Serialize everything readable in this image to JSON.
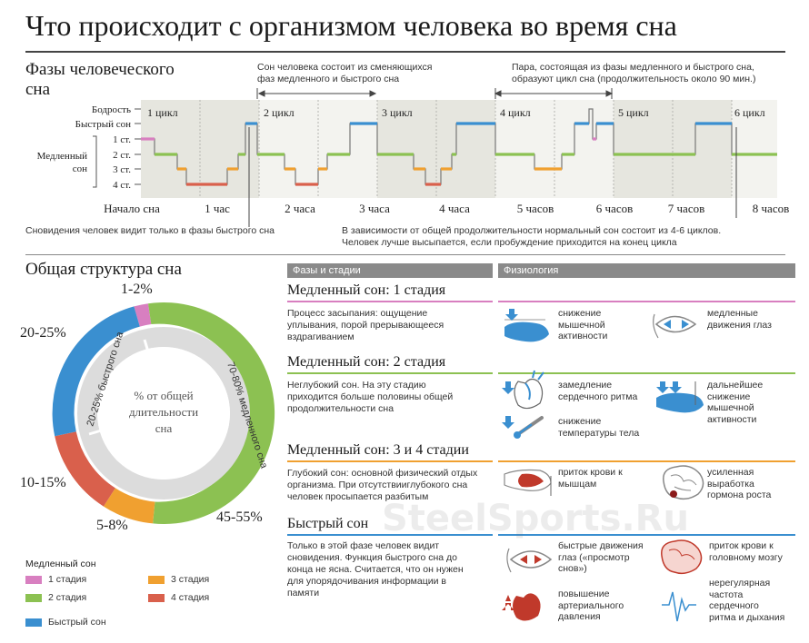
{
  "title": "Что происходит с организмом человека во время сна",
  "phases": {
    "title_line1": "Фазы человеческого",
    "title_line2": "сна",
    "note_cycles_line1": "Сон человека состоит из сменяющихся",
    "note_cycles_line2": "фаз медленного и быстрого сна",
    "note_pair_line1": "Пара, состоящая из фазы медленного и быстрого сна,",
    "note_pair_line2": "образуют цикл сна (продолжительность около 90 мин.)",
    "y_labels": {
      "wake": "Бодрость",
      "rem": "Быстрый сон",
      "slow_line1": "Медленный",
      "slow_line2": "сон",
      "s1": "1 ст.",
      "s2": "2 ст.",
      "s3": "3 ст.",
      "s4": "4 ст."
    },
    "cycles": [
      "1 цикл",
      "2 цикл",
      "3 цикл",
      "4 цикл",
      "5 цикл",
      "6 цикл"
    ],
    "x_ticks": [
      "Начало сна",
      "1 час",
      "2 часа",
      "3 часа",
      "4 часа",
      "5 часов",
      "6 часов",
      "7 часов",
      "8 часов"
    ],
    "note_dreams": "Сновидения человек видит только в фазы быстрого сна",
    "note_total_line1": "В зависимости от общей продолжительности нормальный сон состоит из 4-6 циклов.",
    "note_total_line2": "Человек лучше высыпается, если пробуждение приходится на конец цикла"
  },
  "structure": {
    "title": "Общая структура сна",
    "center_line1": "% от общей",
    "center_line2": "длительности",
    "center_line3": "сна",
    "inner_slow": "70-80% медленного сна",
    "inner_fast": "20-25% быстрого сна",
    "pct_s1": "1-2%",
    "pct_rem": "20-25%",
    "pct_s4": "10-15%",
    "pct_s3": "5-8%",
    "pct_s2": "45-55%",
    "legend_title": "Медленный сон",
    "legend": {
      "s1": "1 стадия",
      "s2": "2 стадия",
      "s3": "3 стадия",
      "s4": "4 стадия",
      "rem": "Быстрый сон"
    }
  },
  "table": {
    "header_phases": "Фазы и стадии",
    "header_phys": "Физиология",
    "stages": [
      {
        "title": "Медленный сон: 1 стадия",
        "desc": [
          "Процесс засыпания: ощущение",
          "уплывания, порой прерывающееся",
          "вздрагиванием"
        ],
        "phys": [
          [
            "снижение",
            "мышечной",
            "активности"
          ],
          [
            "медленные",
            "движения глаз"
          ]
        ]
      },
      {
        "title": "Медленный сон: 2 стадия",
        "desc": [
          "Неглубокий сон. На эту стадию",
          "приходится больше половины общей",
          "продолжительности сна"
        ],
        "phys": [
          [
            "замедление",
            "сердечного ритма"
          ],
          [
            "дальнейшее",
            "снижение",
            "мышечной",
            "активности"
          ],
          [
            "снижение",
            "температуры тела"
          ]
        ]
      },
      {
        "title": "Медленный сон: 3 и 4 стадии",
        "desc": [
          "Глубокий сон: основной физический отдых",
          "организма. При отсутствииглубокого сна",
          "человек просыпается разбитым"
        ],
        "phys": [
          [
            "приток крови к",
            "мышцам"
          ],
          [
            "усиленная",
            "выработка",
            "гормона роста"
          ]
        ]
      },
      {
        "title": "Быстрый сон",
        "desc": [
          "Только в этой фазе человек видит",
          "сновидения. Функция быстрого сна до",
          "конца не ясна. Считается, что он нужен",
          "для упорядочивания информации в",
          "памяти"
        ],
        "phys": [
          [
            "быстрые движения",
            "глаз («просмотр",
            "снов»)"
          ],
          [
            "приток крови к",
            "головному мозгу"
          ],
          [
            "повышение",
            "артериального",
            "давления"
          ],
          [
            "нерегулярная",
            "частота",
            "сердечного",
            "ритма и дыхания"
          ]
        ]
      }
    ]
  },
  "watermark": "SteelSports.Ru",
  "colors": {
    "stage1": "#d87fc0",
    "stage2": "#8cc152",
    "stage3": "#f0a030",
    "stage4": "#d9604c",
    "rem": "#3a8fd0",
    "band": "#e6e6df",
    "header": "#8a8a8a"
  }
}
